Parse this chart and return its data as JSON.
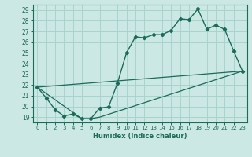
{
  "xlabel": "Humidex (Indice chaleur)",
  "background_color": "#cce8e4",
  "grid_color": "#a8d4ce",
  "line_color": "#1a6b58",
  "xlim": [
    -0.5,
    23.5
  ],
  "ylim": [
    18.5,
    29.5
  ],
  "xticks": [
    0,
    1,
    2,
    3,
    4,
    5,
    6,
    7,
    8,
    9,
    10,
    11,
    12,
    13,
    14,
    15,
    16,
    17,
    18,
    19,
    20,
    21,
    22,
    23
  ],
  "yticks": [
    19,
    20,
    21,
    22,
    23,
    24,
    25,
    26,
    27,
    28,
    29
  ],
  "main_x": [
    0,
    1,
    2,
    3,
    4,
    5,
    6,
    7,
    8,
    9,
    10,
    11,
    12,
    13,
    14,
    15,
    16,
    17,
    18,
    19,
    20,
    21,
    22,
    23
  ],
  "main_y": [
    21.8,
    20.8,
    19.7,
    19.1,
    19.3,
    18.85,
    18.85,
    19.85,
    19.95,
    22.2,
    25.0,
    26.5,
    26.4,
    26.7,
    26.7,
    27.1,
    28.2,
    28.1,
    29.1,
    27.2,
    27.6,
    27.2,
    25.2,
    23.3
  ],
  "trend_x": [
    0,
    23
  ],
  "trend_y": [
    21.8,
    23.3
  ],
  "bottom_x": [
    0,
    5,
    6,
    7,
    23
  ],
  "bottom_y": [
    21.8,
    18.85,
    18.85,
    19.0,
    23.3
  ]
}
